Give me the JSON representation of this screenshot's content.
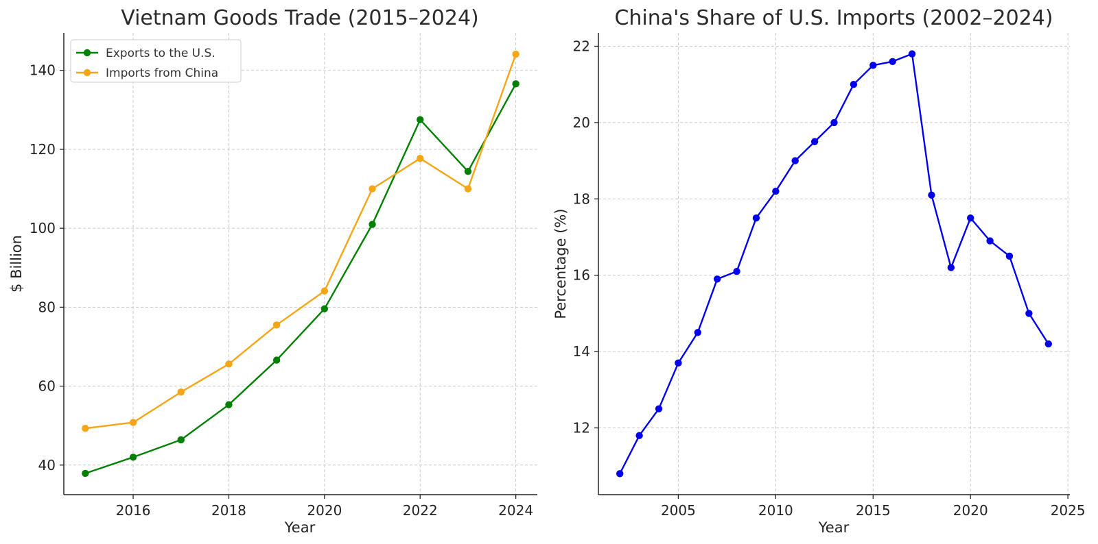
{
  "chart_data": [
    {
      "type": "line",
      "title": "Vietnam Goods Trade (2015–2024)",
      "xlabel": "Year",
      "ylabel": "$ Billion",
      "x": [
        2015,
        2016,
        2017,
        2018,
        2019,
        2020,
        2021,
        2022,
        2023,
        2024
      ],
      "xlim": [
        2014.55,
        2024.45
      ],
      "ylim": [
        32.5,
        149.5
      ],
      "xticks": [
        2016,
        2018,
        2020,
        2022,
        2024
      ],
      "yticks": [
        40,
        60,
        80,
        100,
        120,
        140
      ],
      "grid": true,
      "legend_position": "top-left",
      "series": [
        {
          "name": "Exports to the U.S.",
          "color": "#008000",
          "values": [
            37.9,
            42.0,
            46.4,
            55.3,
            66.6,
            79.6,
            101.0,
            127.5,
            114.4,
            136.6
          ]
        },
        {
          "name": "Imports from China",
          "color": "#f5a516",
          "values": [
            49.3,
            50.8,
            58.5,
            65.6,
            75.5,
            84.1,
            110.0,
            117.7,
            110.0,
            144.1
          ]
        }
      ]
    },
    {
      "type": "line",
      "title": "China's Share of U.S. Imports (2002–2024)",
      "xlabel": "Year",
      "ylabel": "Percentage (%)",
      "x": [
        2002,
        2003,
        2004,
        2005,
        2006,
        2007,
        2008,
        2009,
        2010,
        2011,
        2012,
        2013,
        2014,
        2015,
        2016,
        2017,
        2018,
        2019,
        2020,
        2021,
        2022,
        2023,
        2024
      ],
      "xlim": [
        2000.9,
        2025.1
      ],
      "ylim": [
        10.25,
        22.35
      ],
      "xticks": [
        2005,
        2010,
        2015,
        2020,
        2025
      ],
      "yticks": [
        12,
        14,
        16,
        18,
        20,
        22
      ],
      "grid": true,
      "series": [
        {
          "color": "#0000ee",
          "values": [
            10.8,
            11.8,
            12.5,
            13.7,
            14.5,
            15.9,
            16.1,
            17.5,
            18.2,
            19.0,
            19.5,
            20.0,
            21.0,
            21.5,
            21.6,
            21.8,
            18.1,
            16.2,
            17.5,
            16.9,
            16.5,
            15.0,
            14.2
          ]
        }
      ]
    }
  ]
}
